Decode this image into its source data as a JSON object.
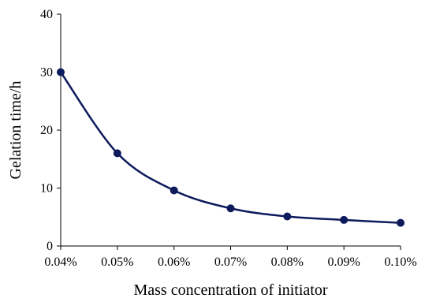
{
  "chart_data": {
    "type": "line",
    "title": "",
    "xlabel": "Mass concentration of initiator",
    "ylabel": "Gelation time/h",
    "categories": [
      "0.04%",
      "0.05%",
      "0.06%",
      "0.07%",
      "0.08%",
      "0.09%",
      "0.10%"
    ],
    "x": [
      0.04,
      0.05,
      0.06,
      0.07,
      0.08,
      0.09,
      0.1
    ],
    "series": [
      {
        "values": [
          30,
          16,
          9.6,
          6.5,
          5.1,
          4.5,
          4.0
        ],
        "color": "#0d1a5c",
        "smooth": true,
        "marker": "circle"
      }
    ],
    "ylim": [
      0,
      40
    ],
    "yticks": [
      0,
      10,
      20,
      30,
      40
    ],
    "grid": false,
    "legend": "none"
  }
}
